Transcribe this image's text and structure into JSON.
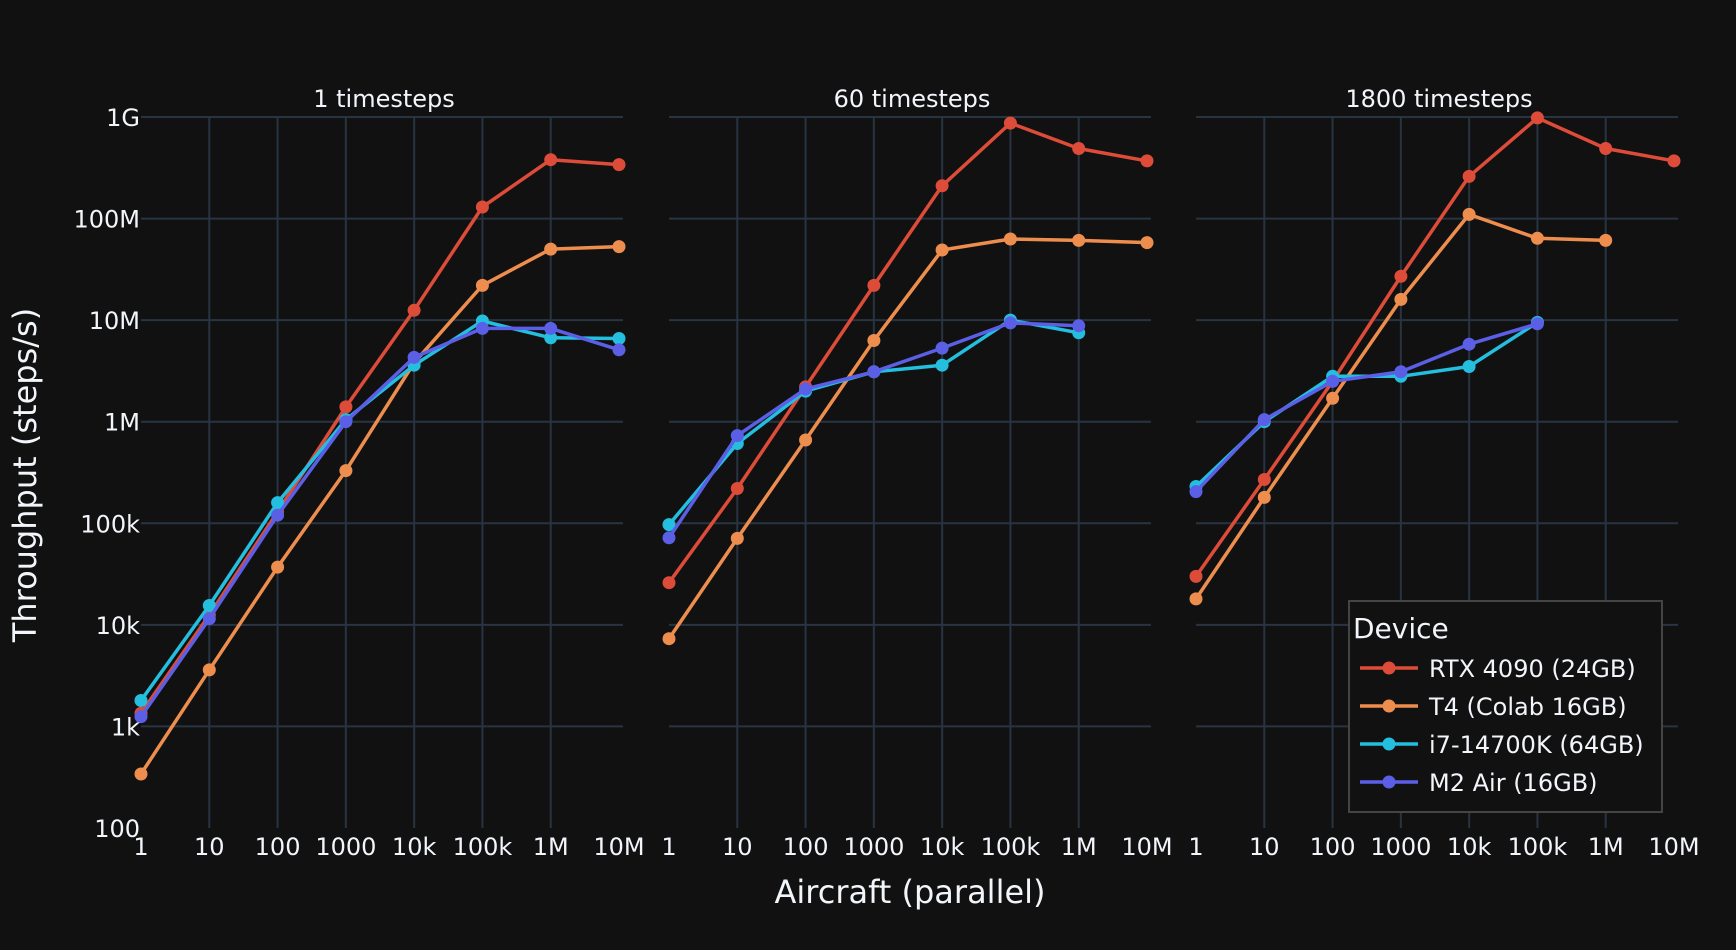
{
  "chart_data": {
    "type": "line",
    "xlabel": "Aircraft (parallel)",
    "ylabel": "Throughput (steps/s)",
    "x_scale": "log",
    "y_scale": "log",
    "x_range": [
      1,
      10000000
    ],
    "y_range": [
      100,
      1000000000
    ],
    "x_ticks": [
      {
        "value": 1,
        "label": "1"
      },
      {
        "value": 10,
        "label": "10"
      },
      {
        "value": 100,
        "label": "100"
      },
      {
        "value": 1000,
        "label": "1000"
      },
      {
        "value": 10000,
        "label": "10k"
      },
      {
        "value": 100000,
        "label": "100k"
      },
      {
        "value": 1000000,
        "label": "1M"
      },
      {
        "value": 10000000,
        "label": "10M"
      }
    ],
    "y_ticks": [
      {
        "value": 100,
        "label": "100"
      },
      {
        "value": 1000,
        "label": "1k"
      },
      {
        "value": 10000,
        "label": "10k"
      },
      {
        "value": 100000,
        "label": "100k"
      },
      {
        "value": 1000000,
        "label": "1M"
      },
      {
        "value": 10000000,
        "label": "10M"
      },
      {
        "value": 100000000,
        "label": "100M"
      },
      {
        "value": 1000000000,
        "label": "1G"
      }
    ],
    "grid": true,
    "legend": {
      "title": "Device",
      "placement": "bottom-right",
      "entries": [
        "RTX 4090 (24GB)",
        "T4 (Colab 16GB)",
        "i7-14700K (64GB)",
        "M2 Air (16GB)"
      ]
    },
    "series_colors": [
      "#dc4c38",
      "#ee8e4e",
      "#24bedf",
      "#5b5fe6"
    ],
    "panels": [
      {
        "title": "1 timesteps",
        "series": [
          {
            "name": "RTX 4090 (24GB)",
            "x": [
              1,
              10,
              100,
              1000,
              10000,
              100000,
              1000000,
              10000000
            ],
            "y": [
              1350,
              12500,
              130000,
              1400000,
              12500000,
              130000000,
              380000000,
              340000000
            ]
          },
          {
            "name": "T4 (Colab 16GB)",
            "x": [
              1,
              10,
              100,
              1000,
              10000,
              100000,
              1000000,
              10000000
            ],
            "y": [
              340,
              3600,
              37000,
              330000,
              3800000,
              22000000,
              50000000,
              53000000
            ]
          },
          {
            "name": "i7-14700K (64GB)",
            "x": [
              1,
              10,
              100,
              1000,
              10000,
              100000,
              1000000,
              10000000
            ],
            "y": [
              1800,
              15500,
              160000,
              1050000,
              3600000,
              9800000,
              6700000,
              6600000
            ]
          },
          {
            "name": "M2 Air (16GB)",
            "x": [
              1,
              10,
              100,
              1000,
              10000,
              100000,
              1000000,
              10000000
            ],
            "y": [
              1250,
              11500,
              120000,
              1000000,
              4300000,
              8300000,
              8300000,
              5100000
            ]
          }
        ]
      },
      {
        "title": "60 timesteps",
        "series": [
          {
            "name": "RTX 4090 (24GB)",
            "x": [
              1,
              10,
              100,
              1000,
              10000,
              100000,
              1000000,
              10000000
            ],
            "y": [
              26000,
              220000,
              2200000,
              22000000,
              210000000,
              870000000,
              490000000,
              370000000
            ]
          },
          {
            "name": "T4 (Colab 16GB)",
            "x": [
              1,
              10,
              100,
              1000,
              10000,
              100000,
              1000000,
              10000000
            ],
            "y": [
              7300,
              71000,
              660000,
              6300000,
              49000000,
              63000000,
              61000000,
              58000000
            ]
          },
          {
            "name": "i7-14700K (64GB)",
            "x": [
              1,
              10,
              100,
              1000,
              10000,
              100000,
              1000000
            ],
            "y": [
              97000,
              610000,
              2000000,
              3100000,
              3600000,
              10000000,
              7500000
            ]
          },
          {
            "name": "M2 Air (16GB)",
            "x": [
              1,
              10,
              100,
              1000,
              10000,
              100000,
              1000000
            ],
            "y": [
              72000,
              730000,
              2100000,
              3100000,
              5300000,
              9400000,
              8800000
            ]
          }
        ]
      },
      {
        "title": "1800 timesteps",
        "series": [
          {
            "name": "RTX 4090 (24GB)",
            "x": [
              1,
              10,
              100,
              1000,
              10000,
              100000,
              1000000,
              10000000
            ],
            "y": [
              30000,
              270000,
              2500000,
              27000000,
              260000000,
              980000000,
              490000000,
              370000000
            ]
          },
          {
            "name": "T4 (Colab 16GB)",
            "x": [
              1,
              10,
              100,
              1000,
              10000,
              100000,
              1000000
            ],
            "y": [
              18000,
              180000,
              1700000,
              16000000,
              110000000,
              64000000,
              61000000
            ]
          },
          {
            "name": "i7-14700K (64GB)",
            "x": [
              1,
              10,
              100,
              1000,
              10000,
              100000
            ],
            "y": [
              230000,
              1000000,
              2800000,
              2800000,
              3500000,
              9500000
            ]
          },
          {
            "name": "M2 Air (16GB)",
            "x": [
              1,
              10,
              100,
              1000,
              10000,
              100000
            ],
            "y": [
              205000,
              1050000,
              2500000,
              3100000,
              5800000,
              9200000
            ]
          }
        ]
      }
    ]
  }
}
